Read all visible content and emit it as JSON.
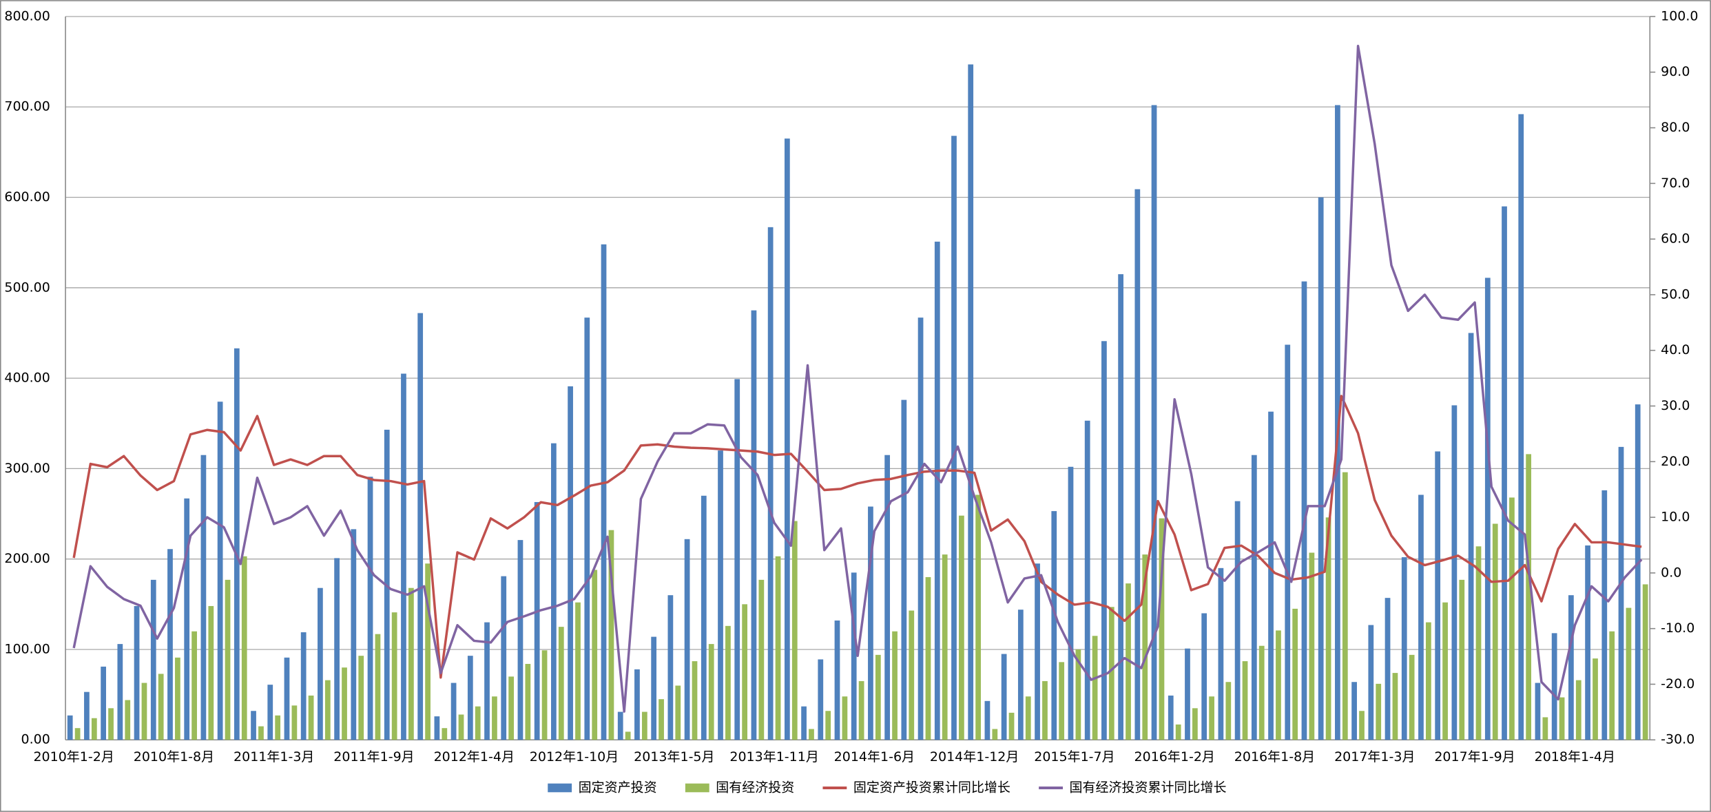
{
  "chart_data": {
    "type": "bar-line",
    "categories": [
      "2010年1-2月",
      null,
      null,
      null,
      null,
      null,
      "2010年1-8月",
      null,
      null,
      null,
      null,
      null,
      "2011年1-3月",
      null,
      null,
      null,
      null,
      null,
      "2011年1-9月",
      null,
      null,
      null,
      null,
      null,
      "2012年1-4月",
      null,
      null,
      null,
      null,
      null,
      "2012年1-10月",
      null,
      null,
      null,
      null,
      null,
      "2013年1-5月",
      null,
      null,
      null,
      null,
      null,
      "2013年1-11月",
      null,
      null,
      null,
      null,
      null,
      "2014年1-6月",
      null,
      null,
      null,
      null,
      null,
      "2014年1-12月",
      null,
      null,
      null,
      null,
      null,
      "2015年1-7月",
      null,
      null,
      null,
      null,
      null,
      "2016年1-2月",
      null,
      null,
      null,
      null,
      null,
      "2016年1-8月",
      null,
      null,
      null,
      null,
      null,
      "2017年1-3月",
      null,
      null,
      null,
      null,
      null,
      "2017年1-9月",
      null,
      null,
      null,
      null,
      null,
      "2018年1-4月",
      null,
      null,
      null,
      null
    ],
    "series": [
      {
        "name": "固定资产投资",
        "kind": "bar",
        "color": "#4f81bd",
        "values": [
          27,
          53,
          81,
          106,
          148,
          177,
          211,
          267,
          315,
          374,
          433,
          32,
          61,
          91,
          119,
          168,
          201,
          233,
          291,
          343,
          405,
          472,
          26,
          63,
          93,
          130,
          181,
          221,
          263,
          328,
          391,
          467,
          548,
          31,
          78,
          114,
          160,
          222,
          270,
          320,
          399,
          475,
          567,
          665,
          37,
          89,
          132,
          185,
          258,
          315,
          376,
          467,
          551,
          668,
          747,
          43,
          95,
          144,
          195,
          253,
          302,
          353,
          441,
          515,
          609,
          702,
          49,
          101,
          140,
          190,
          264,
          315,
          363,
          437,
          507,
          600,
          702,
          64,
          127,
          157,
          202,
          271,
          319,
          370,
          450,
          511,
          590,
          692,
          63,
          118,
          160,
          215,
          276,
          324,
          371
        ]
      },
      {
        "name": "国有经济投资",
        "kind": "bar",
        "color": "#9bbb59",
        "values": [
          13,
          24,
          35,
          44,
          63,
          73,
          91,
          120,
          148,
          177,
          203,
          15,
          27,
          38,
          49,
          66,
          80,
          93,
          117,
          141,
          168,
          195,
          13,
          28,
          37,
          48,
          70,
          84,
          99,
          125,
          152,
          188,
          232,
          9,
          31,
          45,
          60,
          87,
          106,
          126,
          150,
          177,
          203,
          242,
          12,
          32,
          48,
          65,
          94,
          120,
          143,
          180,
          205,
          248,
          271,
          12,
          30,
          48,
          65,
          86,
          100,
          115,
          147,
          173,
          205,
          245,
          17,
          35,
          48,
          64,
          87,
          104,
          121,
          145,
          207,
          246,
          296,
          32,
          62,
          74,
          94,
          130,
          152,
          177,
          214,
          239,
          268,
          316,
          25,
          47,
          66,
          90,
          120,
          146,
          172
        ]
      },
      {
        "name": "固定资产投资累计同比增长",
        "kind": "line",
        "axis": "y2",
        "color": "#c0504d",
        "values": [
          2.7,
          19.6,
          19,
          21,
          17.5,
          14.9,
          16.5,
          24.9,
          25.7,
          25.3,
          22,
          28.2,
          19.4,
          20.4,
          19.4,
          21,
          21,
          17.6,
          16.7,
          16.5,
          15.9,
          16.5,
          -18.8,
          3.7,
          2.4,
          9.8,
          8,
          10,
          12.7,
          12.2,
          13.9,
          15.7,
          16.3,
          18.4,
          22.9,
          23.1,
          22.7,
          22.5,
          22.4,
          22.2,
          22,
          21.8,
          21.2,
          21.4,
          18.2,
          14.9,
          15.1,
          16.1,
          16.7,
          16.9,
          17.6,
          18.2,
          18.4,
          18.4,
          18,
          7.6,
          9.6,
          5.7,
          -1.6,
          -3.9,
          -5.7,
          -5.3,
          -6.1,
          -8.6,
          -5.7,
          12.9,
          6.9,
          -3.1,
          -2,
          4.5,
          4.9,
          3.1,
          0,
          -1.2,
          -0.8,
          0.2,
          31.8,
          25.1,
          13.1,
          6.7,
          2.9,
          1.4,
          2.2,
          3.1,
          1.2,
          -1.6,
          -1.4,
          1.4,
          -5.1,
          4.3,
          8.8,
          5.5,
          5.5,
          5.1,
          4.7
        ]
      },
      {
        "name": "国有经济投资累计同比增长",
        "kind": "line",
        "axis": "y2",
        "color": "#8064a2",
        "values": [
          -13.5,
          1.2,
          -2.5,
          -4.7,
          -5.9,
          -11.8,
          -6.3,
          6.7,
          10,
          8.2,
          1.6,
          17.1,
          8.8,
          10,
          12,
          6.7,
          11.2,
          4.1,
          -0.4,
          -2.9,
          -3.9,
          -2.4,
          -18,
          -9.4,
          -12.2,
          -12.5,
          -8.8,
          -7.8,
          -6.7,
          -5.9,
          -4.7,
          -0.6,
          6.5,
          -24.9,
          13.3,
          20,
          25.1,
          25.1,
          26.7,
          26.5,
          20.8,
          17.6,
          9,
          4.9,
          37.3,
          4.1,
          8,
          -14.9,
          7.5,
          12.9,
          14.5,
          19.6,
          16.3,
          22.7,
          13.7,
          5.5,
          -5.3,
          -1,
          -0.4,
          -8.8,
          -14.9,
          -19.2,
          -18,
          -15.3,
          -17.1,
          -9.6,
          31.2,
          17.8,
          1,
          -1.4,
          2,
          3.7,
          5.5,
          -1.6,
          12,
          12,
          20.4,
          94.7,
          77.1,
          55.3,
          47.1,
          50,
          45.9,
          45.5,
          48.6,
          15.5,
          9.4,
          6.9,
          -19.6,
          -22.7,
          -9.4,
          -2.4,
          -5.1,
          -0.8,
          2.4
        ]
      }
    ],
    "ylim": [
      0,
      800
    ],
    "yticks": [
      {
        "value": 0,
        "label": "0.00"
      },
      {
        "value": 100,
        "label": "100.00"
      },
      {
        "value": 200,
        "label": "200.00"
      },
      {
        "value": 300,
        "label": "300.00"
      },
      {
        "value": 400,
        "label": "400.00"
      },
      {
        "value": 500,
        "label": "500.00"
      },
      {
        "value": 600,
        "label": "600.00"
      },
      {
        "value": 700,
        "label": "700.00"
      },
      {
        "value": 800,
        "label": "800.00"
      }
    ],
    "y2lim": [
      -30,
      100
    ],
    "y2ticks": [
      {
        "value": -30,
        "label": "-30.0"
      },
      {
        "value": -20,
        "label": "-20.0"
      },
      {
        "value": -10,
        "label": "-10.0"
      },
      {
        "value": 0,
        "label": "0.0"
      },
      {
        "value": 10,
        "label": "10.0"
      },
      {
        "value": 20,
        "label": "20.0"
      },
      {
        "value": 30,
        "label": "30.0"
      },
      {
        "value": 40,
        "label": "40.0"
      },
      {
        "value": 50,
        "label": "50.0"
      },
      {
        "value": 60,
        "label": "60.0"
      },
      {
        "value": 70,
        "label": "70.0"
      },
      {
        "value": 80,
        "label": "80.0"
      },
      {
        "value": 90,
        "label": "90.0"
      },
      {
        "value": 100,
        "label": "100.0"
      }
    ],
    "grid": true,
    "legend": "bottom"
  }
}
